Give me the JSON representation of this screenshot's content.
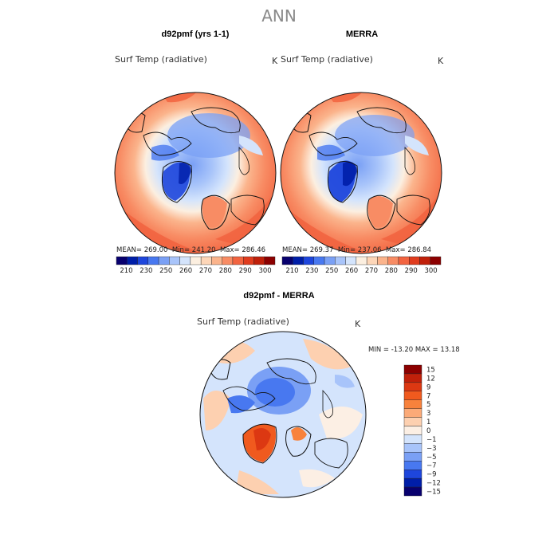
{
  "figure": {
    "title": "ANN"
  },
  "panels": [
    {
      "title": "d92pmf (yrs 1-1)",
      "variable": "Surf Temp (radiative)",
      "units": "K",
      "stats": {
        "mean": "269.00",
        "min": "241.20",
        "max": "286.46"
      }
    },
    {
      "title": "MERRA",
      "variable": "Surf Temp (radiative)",
      "units": "K",
      "stats": {
        "mean": "269.37",
        "min": "237.06",
        "max": "286.84"
      }
    },
    {
      "title": "d92pmf - MERRA",
      "variable": "Surf Temp (radiative)",
      "units": "K",
      "stats": {
        "min": "-13.20",
        "max": "13.18"
      }
    }
  ],
  "stat_labels": {
    "mean": "MEAN=",
    "min": "Min=",
    "max": "Max=",
    "diff_min": "MIN =",
    "diff_max": "MAX ="
  },
  "colorbar_abs": {
    "ticks": [
      "210",
      "230",
      "250",
      "260",
      "270",
      "280",
      "290",
      "300"
    ],
    "colors": [
      "#08006e",
      "#001ea8",
      "#1e46dc",
      "#4878f0",
      "#7aa0f5",
      "#a8c4fa",
      "#d4e4fc",
      "#fcefe0",
      "#fdd6b8",
      "#fbb48c",
      "#f88c64",
      "#f26440",
      "#e03c1e",
      "#c0200a",
      "#8c0000"
    ]
  },
  "colorbar_diff": {
    "ticks": [
      "15",
      "12",
      "9",
      "7",
      "5",
      "3",
      "1",
      "0",
      "−1",
      "−3",
      "−5",
      "−7",
      "−9",
      "−12",
      "−15"
    ],
    "colors": [
      "#8c0000",
      "#c0200a",
      "#dc3812",
      "#f05a1e",
      "#f8823c",
      "#fbaa78",
      "#fdd0b0",
      "#fcefe4",
      "#d4e4fc",
      "#a8c4fa",
      "#7aa0f5",
      "#4878f0",
      "#1e46dc",
      "#001ea8",
      "#08006e"
    ]
  },
  "colors": {
    "title_gray": "#8a8a8a",
    "warm": "#f26440",
    "cold": "#4878f0"
  }
}
